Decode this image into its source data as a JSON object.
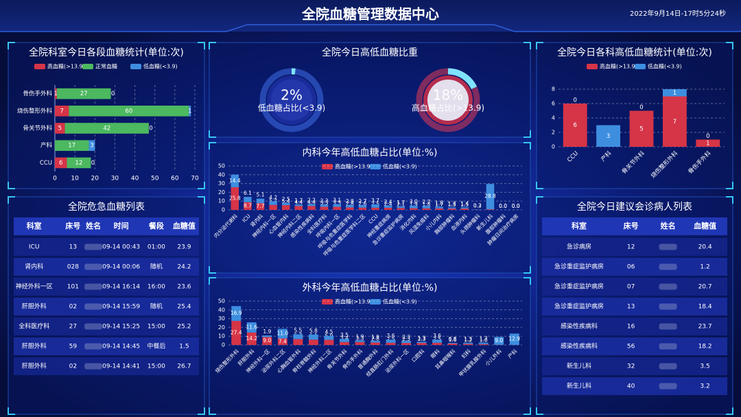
{
  "header": {
    "title": "全院血糖管理数据中心",
    "datetime": "2022年9月14日-17时5分24秒"
  },
  "chart_data": [
    {
      "type": "bar",
      "horizontal": true,
      "stacked": true,
      "title": "全院科室今日各段血糖统计(单位:次)",
      "grid": true,
      "categories": [
        "骨伤手外科",
        "烧伤整形外科",
        "骨关节外科",
        "产科",
        "CCU"
      ],
      "series": [
        {
          "name": "高血糖(>13.9)",
          "color": "#d63447",
          "values": [
            1,
            7,
            5,
            0,
            6
          ]
        },
        {
          "name": "正常血糖",
          "color": "#4cb860",
          "values": [
            27,
            60,
            42,
            17,
            12
          ]
        },
        {
          "name": "低血糖(<3.9)",
          "color": "#3e8ee0",
          "values": [
            0,
            1,
            0,
            3,
            0
          ]
        }
      ],
      "xlim": [
        0,
        70
      ],
      "xticks": [
        0,
        10,
        20,
        30,
        40,
        50,
        60,
        70
      ]
    },
    {
      "type": "gauge",
      "title": "全院今日高低血糖比重",
      "categories": [
        "低血糖占比(<3.9)",
        "高血糖占比(>13.9)"
      ],
      "values": [
        2,
        18
      ],
      "value_labels": [
        "2%",
        "18%"
      ],
      "colors": [
        "#3e6ee8",
        "#e03a55"
      ]
    },
    {
      "type": "bar",
      "stacked": true,
      "title": "全院今日各科高低血糖统计(单位:次)",
      "grid": true,
      "categories": [
        "CCU",
        "产科",
        "骨关节外科",
        "烧伤整形外科",
        "骨伤手外科"
      ],
      "series": [
        {
          "name": "高血糖(>13.9)",
          "color": "#d63447",
          "values": [
            6,
            0,
            5,
            7,
            1
          ]
        },
        {
          "name": "低血糖(<3.9)",
          "color": "#3e8ee0",
          "values": [
            0,
            3,
            0,
            1,
            0
          ]
        }
      ],
      "ylim": [
        0,
        8
      ],
      "yticks": [
        0,
        2,
        4,
        6,
        8
      ]
    },
    {
      "type": "bar",
      "stacked": true,
      "title": "内科今年高低血糖占比(单位:%)",
      "grid": true,
      "categories": [
        "内分泌代谢科",
        "ICU",
        "肾内科",
        "神经内科一区",
        "心血管内科",
        "神经内科二区",
        "感染性疾病科",
        "全科医疗科",
        "呼吸内科一区",
        "呼吸与危重症医学科",
        "呼吸与危重症医学科二区",
        "CCU",
        "神经重症病房",
        "急诊重症监护病房",
        "消化内科",
        "风湿免疫科",
        "小儿内科",
        "胸部肿瘤科",
        "血液内科",
        "头颈肿瘤科",
        "新生儿科",
        "腹部肿瘤科",
        "肿瘤日间治疗病房"
      ],
      "series": [
        {
          "name": "高血糖(>13.9)",
          "color": "#d63447",
          "values": [
            25.8,
            8.7,
            7.7,
            5.7,
            5.4,
            4.4,
            4.4,
            3.5,
            3.5,
            2.8,
            2.6,
            2.5,
            2.4,
            2.1,
            1.9,
            1.8,
            1.7,
            1.5,
            1.5,
            0.2,
            0.7,
            0.0,
            0.0
          ],
          "value_labels": [
            "25.8",
            "8.7",
            "7.7",
            "5.7",
            "5.4",
            "4.4",
            "4.4",
            "3.5",
            "3.5",
            "2.8",
            "2.6",
            "2.5",
            "2.4",
            "2.1",
            "1.9",
            "1.8",
            "1.7",
            "1.5",
            "1.5",
            "0.2",
            "0.7",
            "0.0",
            "0.0"
          ]
        },
        {
          "name": "低血糖(<3.9)",
          "color": "#3e8ee0",
          "values": [
            14.4,
            6.1,
            5.1,
            4.2,
            2.5,
            1.7,
            2.2,
            2.3,
            3.1,
            2.8,
            2.7,
            3.7,
            2.4,
            1.7,
            3.0,
            2.7,
            1.8,
            1.3,
            1.4,
            0.3,
            28.8,
            0.0,
            0.0
          ],
          "value_labels": [
            "14.4",
            "6.1",
            "5.1",
            "4.2",
            "2.5",
            "1.7",
            "2.2",
            "2.3",
            "3.1",
            "2.8",
            "2.7",
            "3.7",
            "2.4",
            "1.7",
            "3.0",
            "2.7",
            "1.8",
            "1.3",
            "1.4",
            "0.3",
            "28.8",
            "0.0",
            "0.0"
          ]
        }
      ],
      "ylim": [
        0,
        50
      ],
      "yticks": [
        0,
        10,
        20,
        30,
        40,
        50
      ]
    },
    {
      "type": "bar",
      "stacked": true,
      "title": "外科今年高低血糖占比(单位:%)",
      "grid": true,
      "categories": [
        "烧伤整形外科",
        "肝胆外科",
        "神经外科一区",
        "泌尿外科二区",
        "心胸血管外科",
        "脊柱脊髓外科",
        "神经外科二区",
        "骨关节外科",
        "骨伤手外科",
        "普通胸外科",
        "结直肠肛门外科",
        "泌尿外科一区",
        "口腔科",
        "眼科",
        "耳鼻咽喉科",
        "妇科",
        "甲状腺乳腺外科",
        "小儿外科",
        "产科"
      ],
      "series": [
        {
          "name": "高血糖(>13.9)",
          "color": "#d63447",
          "values": [
            27.4,
            14.2,
            9.0,
            7.4,
            6.7,
            6.1,
            5.9,
            3.4,
            3.3,
            2.8,
            2.5,
            2.3,
            2.3,
            2.5,
            1.6,
            1.2,
            1.0,
            0.2,
            0.1
          ],
          "value_labels": [
            "27.4",
            "14.2",
            "9.0",
            "7.4",
            "6.7",
            "6.1",
            "5.9",
            "3.4",
            "3.3",
            "2.8",
            "2.5",
            "2.3",
            "2.3",
            "2.5",
            "1.6",
            "1.2",
            "1.0",
            "0.2",
            "0.1"
          ]
        },
        {
          "name": "低血糖(<3.9)",
          "color": "#3e8ee0",
          "values": [
            16.9,
            11.6,
            1.9,
            11.0,
            5.5,
            5.8,
            4.5,
            3.5,
            1.9,
            1.9,
            3.6,
            2.3,
            1.3,
            3.6,
            0.8,
            1.3,
            1.7,
            9.0,
            12.9
          ],
          "value_labels": [
            "16.9",
            "11.6",
            "1.9",
            "11.0",
            "5.5",
            "5.8",
            "4.5",
            "3.5",
            "1.9",
            "1.9",
            "3.6",
            "2.3",
            "1.3",
            "3.6",
            "0.8",
            "1.3",
            "1.7",
            "9.0",
            "12.9"
          ]
        }
      ],
      "ylim": [
        0,
        50
      ],
      "yticks": [
        0,
        10,
        20,
        30,
        40,
        50
      ]
    }
  ],
  "tables": [
    {
      "title": "全院危急血糖列表",
      "columns": [
        "科室",
        "床号",
        "姓名",
        "时间",
        "餐段",
        "血糖值"
      ],
      "rows": [
        [
          "ICU",
          "13",
          "09-14 00:43",
          "01:00",
          "23.9"
        ],
        [
          "肾内科",
          "028",
          "09-14 00:06",
          "随机",
          "24.2"
        ],
        [
          "神经外科一区",
          "101",
          "09-14 16:14",
          "16:00",
          "23.6"
        ],
        [
          "肝胆外科",
          "02",
          "09-14 15:59",
          "随机",
          "25.4"
        ],
        [
          "全科医疗科",
          "27",
          "09-14 15:25",
          "15:00",
          "25.2"
        ],
        [
          "肝胆外科",
          "59",
          "09-14 14:45",
          "中餐后",
          "1.5"
        ],
        [
          "肝胆外科",
          "02",
          "09-14 14:41",
          "15:00",
          "26.7"
        ]
      ]
    },
    {
      "title": "全院今日建议会诊病人列表",
      "columns": [
        "科室",
        "床号",
        "姓名",
        "血糖值"
      ],
      "rows": [
        [
          "急诊病房",
          "12",
          "20.4"
        ],
        [
          "急诊重症监护病房",
          "06",
          "1.2"
        ],
        [
          "急诊重症监护病房",
          "07",
          "20.7"
        ],
        [
          "急诊重症监护病房",
          "13",
          "18.4"
        ],
        [
          "感染性疾病科",
          "16",
          "23.7"
        ],
        [
          "感染性疾病科",
          "56",
          "18.2"
        ],
        [
          "新生儿科",
          "32",
          "3.5"
        ],
        [
          "新生儿科",
          "40",
          "3.2"
        ]
      ]
    }
  ]
}
